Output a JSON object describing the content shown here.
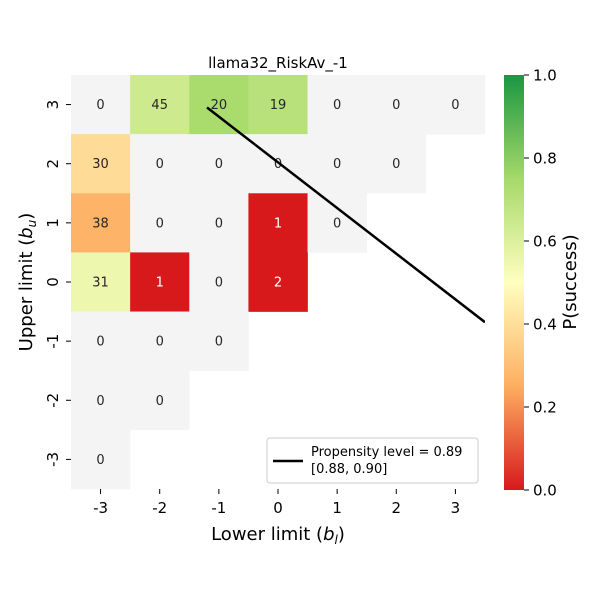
{
  "chart_data": {
    "type": "heatmap",
    "title": "llama32_RiskAv_-1",
    "xlabel_main": "Lower limit (",
    "xlabel_var": "b",
    "xlabel_sub": "l",
    "xlabel_end": ")",
    "ylabel_main": "Upper limit (",
    "ylabel_var": "b",
    "ylabel_sub": "u",
    "ylabel_end": ")",
    "x_ticks": [
      "-3",
      "-2",
      "-1",
      "0",
      "1",
      "2",
      "3"
    ],
    "y_ticks": [
      "3",
      "2",
      "1",
      "0",
      "-1",
      "-2",
      "-3"
    ],
    "cells": [
      {
        "x": "-3",
        "y": "3",
        "label": "0",
        "p": null
      },
      {
        "x": "-2",
        "y": "3",
        "label": "45",
        "p": 0.64
      },
      {
        "x": "-1",
        "y": "3",
        "label": "20",
        "p": 0.74
      },
      {
        "x": "0",
        "y": "3",
        "label": "19",
        "p": 0.7
      },
      {
        "x": "1",
        "y": "3",
        "label": "0",
        "p": null
      },
      {
        "x": "2",
        "y": "3",
        "label": "0",
        "p": null
      },
      {
        "x": "3",
        "y": "3",
        "label": "0",
        "p": null
      },
      {
        "x": "-3",
        "y": "2",
        "label": "30",
        "p": 0.39
      },
      {
        "x": "-2",
        "y": "2",
        "label": "0",
        "p": null
      },
      {
        "x": "-1",
        "y": "2",
        "label": "0",
        "p": null
      },
      {
        "x": "0",
        "y": "2",
        "label": "0",
        "p": null
      },
      {
        "x": "1",
        "y": "2",
        "label": "0",
        "p": null
      },
      {
        "x": "2",
        "y": "2",
        "label": "0",
        "p": null
      },
      {
        "x": "-3",
        "y": "1",
        "label": "38",
        "p": 0.27
      },
      {
        "x": "-2",
        "y": "1",
        "label": "0",
        "p": null
      },
      {
        "x": "-1",
        "y": "1",
        "label": "0",
        "p": null
      },
      {
        "x": "0",
        "y": "1",
        "label": "1",
        "p": 0.0
      },
      {
        "x": "1",
        "y": "1",
        "label": "0",
        "p": null
      },
      {
        "x": "-3",
        "y": "0",
        "label": "31",
        "p": 0.55
      },
      {
        "x": "-2",
        "y": "0",
        "label": "1",
        "p": 0.0
      },
      {
        "x": "-1",
        "y": "0",
        "label": "0",
        "p": null
      },
      {
        "x": "0",
        "y": "0",
        "label": "2",
        "p": 0.0
      },
      {
        "x": "-3",
        "y": "-1",
        "label": "0",
        "p": null
      },
      {
        "x": "-2",
        "y": "-1",
        "label": "0",
        "p": null
      },
      {
        "x": "-1",
        "y": "-1",
        "label": "0",
        "p": null
      },
      {
        "x": "-3",
        "y": "-2",
        "label": "0",
        "p": null
      },
      {
        "x": "-2",
        "y": "-2",
        "label": "0",
        "p": null
      },
      {
        "x": "-3",
        "y": "-3",
        "label": "0",
        "p": null
      }
    ],
    "line": {
      "x_start": -1.2,
      "y_start": 2.95,
      "x_end": 3.5,
      "y_end": -0.68
    },
    "legend_line1": "Propensity level = 0.89",
    "legend_line2": "[0.88, 0.90]",
    "legend_placement": "lower-right",
    "colorbar": {
      "label": "P(success)",
      "range": [
        0.0,
        1.0
      ],
      "ticks": [
        "0.0",
        "0.2",
        "0.4",
        "0.6",
        "0.8",
        "1.0"
      ]
    },
    "colors": {
      "empty_cell": "#f4f4f4",
      "line": "#000000",
      "scale": [
        "#d7191c",
        "#fdae61",
        "#ffffbf",
        "#a6d96a",
        "#1a9641"
      ]
    }
  }
}
